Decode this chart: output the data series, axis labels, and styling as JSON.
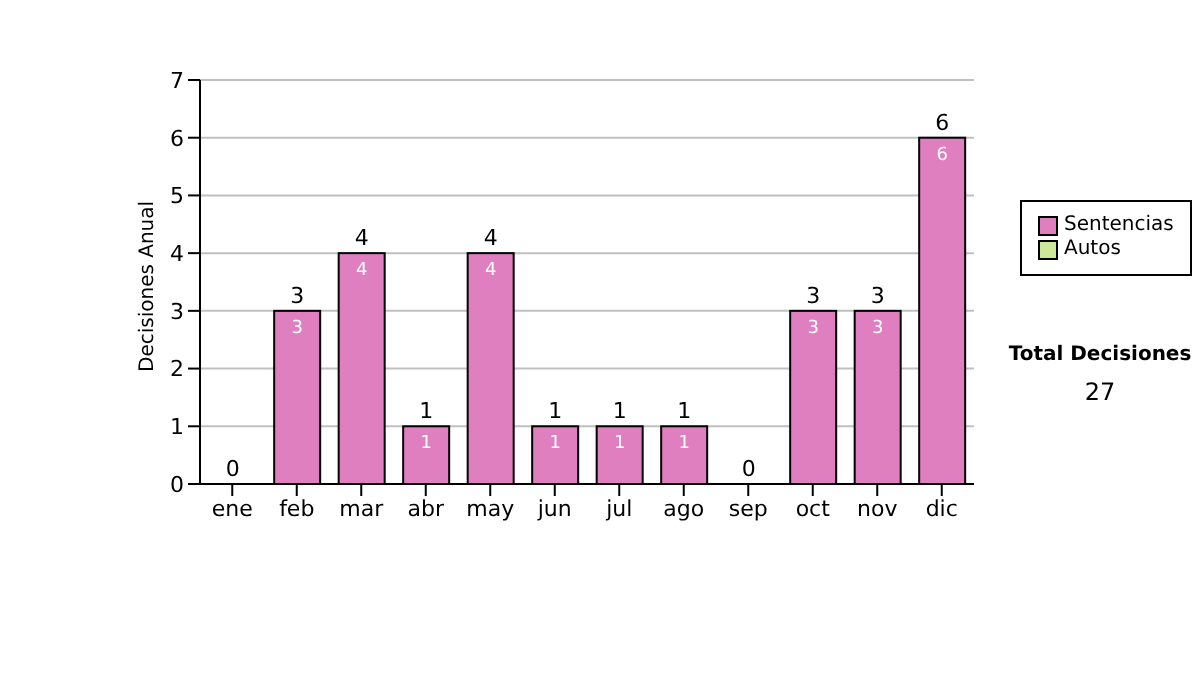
{
  "chart_data": {
    "type": "bar",
    "stacked": true,
    "ylabel": "Decisiones Anual",
    "categories": [
      "ene",
      "feb",
      "mar",
      "abr",
      "may",
      "jun",
      "jul",
      "ago",
      "sep",
      "oct",
      "nov",
      "dic"
    ],
    "series": [
      {
        "name": "Sentencias",
        "color": "#e07fc0",
        "values": [
          0,
          3,
          4,
          1,
          4,
          1,
          1,
          1,
          0,
          3,
          3,
          6
        ],
        "value_labels": [
          null,
          "3",
          "4",
          "1",
          "4",
          "1",
          "1",
          "1",
          null,
          "3",
          "3",
          "6"
        ]
      },
      {
        "name": "Autos",
        "color": "#cce899",
        "values": [
          0,
          0,
          0,
          0,
          0,
          0,
          0,
          0,
          0,
          0,
          0,
          0
        ]
      }
    ],
    "totals": [
      "0",
      "3",
      "4",
      "1",
      "4",
      "1",
      "1",
      "1",
      "0",
      "3",
      "3",
      "6"
    ],
    "ylim": [
      0,
      7
    ],
    "yticks": [
      0,
      1,
      2,
      3,
      4,
      5,
      6,
      7
    ],
    "grid": "y",
    "legend": "right",
    "annotations": [
      "Total Decisiones",
      "27"
    ]
  }
}
